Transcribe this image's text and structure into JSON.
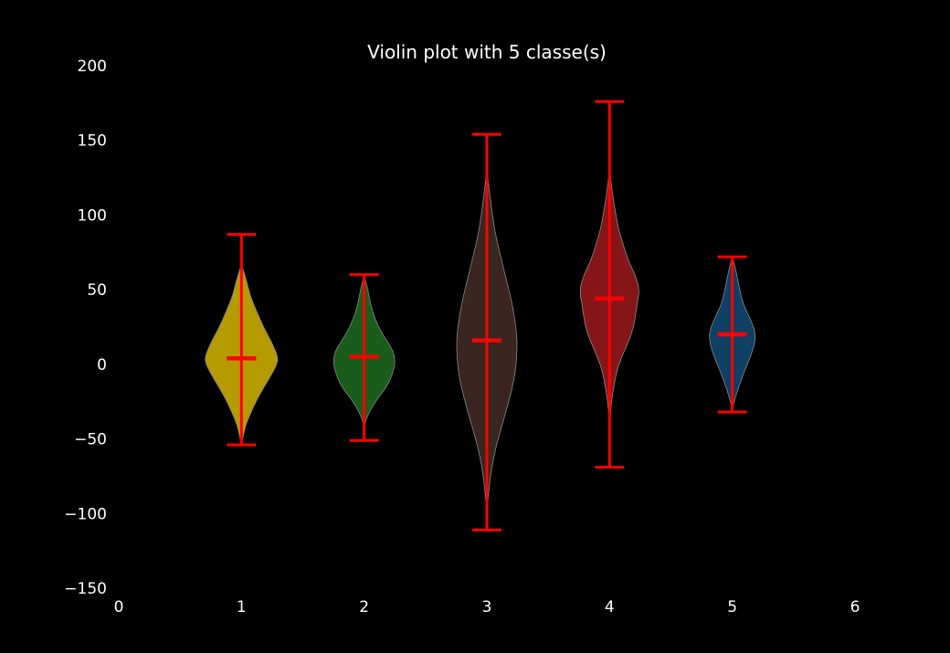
{
  "chart_data": {
    "type": "violin",
    "title": "Violin plot with 5 classe(s)",
    "xlabel": "",
    "ylabel": "",
    "xlim": [
      0,
      6
    ],
    "ylim": [
      -150,
      200
    ],
    "x_ticks": [
      0,
      1,
      2,
      3,
      4,
      5,
      6
    ],
    "x_tick_labels": [
      "0",
      "1",
      "2",
      "3",
      "4",
      "5",
      "6"
    ],
    "y_ticks": [
      -150,
      -100,
      -50,
      0,
      50,
      100,
      150,
      200
    ],
    "y_tick_labels": [
      "−150",
      "−100",
      "−50",
      "0",
      "50",
      "100",
      "150",
      "200"
    ],
    "grid": false,
    "legend": "none",
    "stats_color": "#ff0000",
    "violins": [
      {
        "position": 1,
        "color": "#b59a00",
        "min": -54,
        "median": 4,
        "max": 87,
        "profile": [
          [
            -54,
            0.0
          ],
          [
            -48,
            0.02
          ],
          [
            -40,
            0.05
          ],
          [
            -30,
            0.12
          ],
          [
            -20,
            0.2
          ],
          [
            -10,
            0.3
          ],
          [
            0,
            0.39
          ],
          [
            5,
            0.4
          ],
          [
            15,
            0.33
          ],
          [
            25,
            0.24
          ],
          [
            35,
            0.17
          ],
          [
            45,
            0.1
          ],
          [
            55,
            0.06
          ],
          [
            63,
            0.02
          ],
          [
            67,
            0.0
          ]
        ]
      },
      {
        "position": 2,
        "color": "#1a5c1a",
        "min": -51,
        "median": 5,
        "max": 60,
        "profile": [
          [
            -42,
            0.0
          ],
          [
            -35,
            0.03
          ],
          [
            -25,
            0.12
          ],
          [
            -15,
            0.25
          ],
          [
            -5,
            0.32
          ],
          [
            3,
            0.34
          ],
          [
            10,
            0.31
          ],
          [
            20,
            0.2
          ],
          [
            30,
            0.12
          ],
          [
            40,
            0.07
          ],
          [
            50,
            0.04
          ],
          [
            57,
            0.01
          ],
          [
            60,
            0.0
          ]
        ]
      },
      {
        "position": 3,
        "color": "#3a2520",
        "min": -111,
        "median": 16,
        "max": 154,
        "profile": [
          [
            -100,
            0.0
          ],
          [
            -85,
            0.02
          ],
          [
            -70,
            0.05
          ],
          [
            -55,
            0.1
          ],
          [
            -40,
            0.17
          ],
          [
            -25,
            0.24
          ],
          [
            -10,
            0.3
          ],
          [
            5,
            0.33
          ],
          [
            20,
            0.33
          ],
          [
            40,
            0.28
          ],
          [
            55,
            0.22
          ],
          [
            70,
            0.16
          ],
          [
            85,
            0.1
          ],
          [
            100,
            0.06
          ],
          [
            115,
            0.03
          ],
          [
            130,
            0.0
          ]
        ]
      },
      {
        "position": 4,
        "color": "#851618",
        "min": -69,
        "median": 44,
        "max": 176,
        "profile": [
          [
            -40,
            0.0
          ],
          [
            -25,
            0.02
          ],
          [
            -10,
            0.06
          ],
          [
            0,
            0.1
          ],
          [
            10,
            0.17
          ],
          [
            20,
            0.24
          ],
          [
            30,
            0.28
          ],
          [
            40,
            0.3
          ],
          [
            50,
            0.33
          ],
          [
            60,
            0.28
          ],
          [
            70,
            0.2
          ],
          [
            80,
            0.15
          ],
          [
            90,
            0.1
          ],
          [
            100,
            0.07
          ],
          [
            115,
            0.03
          ],
          [
            130,
            0.0
          ]
        ]
      },
      {
        "position": 5,
        "color": "#0f3f63",
        "min": -32,
        "median": 20,
        "max": 72,
        "profile": [
          [
            -30,
            0.0
          ],
          [
            -25,
            0.02
          ],
          [
            -15,
            0.07
          ],
          [
            -5,
            0.13
          ],
          [
            5,
            0.2
          ],
          [
            15,
            0.25
          ],
          [
            22,
            0.25
          ],
          [
            30,
            0.2
          ],
          [
            40,
            0.12
          ],
          [
            50,
            0.08
          ],
          [
            60,
            0.05
          ],
          [
            70,
            0.01
          ],
          [
            72,
            0.0
          ]
        ]
      }
    ]
  }
}
